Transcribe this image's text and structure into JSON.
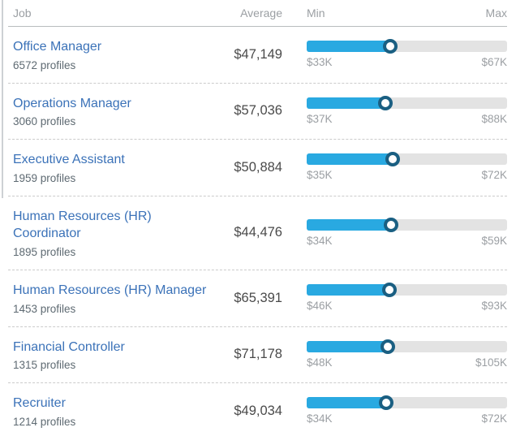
{
  "table": {
    "headers": {
      "job": "Job",
      "average": "Average",
      "min": "Min",
      "max": "Max"
    },
    "rows": [
      {
        "job": "Office Manager",
        "profiles": "6572 profiles",
        "average": "$47,149",
        "min_label": "$33K",
        "max_label": "$67K",
        "min": 33000,
        "max": 67000,
        "avg": 47149
      },
      {
        "job": "Operations Manager",
        "profiles": "3060 profiles",
        "average": "$57,036",
        "min_label": "$37K",
        "max_label": "$88K",
        "min": 37000,
        "max": 88000,
        "avg": 57036
      },
      {
        "job": "Executive Assistant",
        "profiles": "1959 profiles",
        "average": "$50,884",
        "min_label": "$35K",
        "max_label": "$72K",
        "min": 35000,
        "max": 72000,
        "avg": 50884
      },
      {
        "job": "Human Resources (HR) Coordinator",
        "profiles": "1895 profiles",
        "average": "$44,476",
        "min_label": "$34K",
        "max_label": "$59K",
        "min": 34000,
        "max": 59000,
        "avg": 44476
      },
      {
        "job": "Human Resources (HR) Manager",
        "profiles": "1453 profiles",
        "average": "$65,391",
        "min_label": "$46K",
        "max_label": "$93K",
        "min": 46000,
        "max": 93000,
        "avg": 65391
      },
      {
        "job": "Financial Controller",
        "profiles": "1315 profiles",
        "average": "$71,178",
        "min_label": "$48K",
        "max_label": "$105K",
        "min": 48000,
        "max": 105000,
        "avg": 71178
      },
      {
        "job": "Recruiter",
        "profiles": "1214 profiles",
        "average": "$49,034",
        "min_label": "$34K",
        "max_label": "$72K",
        "min": 34000,
        "max": 72000,
        "avg": 49034
      }
    ]
  },
  "colors": {
    "bar_fill": "#29a9e1",
    "bar_track": "#e3e3e3",
    "handle_ring": "#1a5f82",
    "link_blue": "#3b72b8",
    "header_gray": "#9b9fa3"
  }
}
